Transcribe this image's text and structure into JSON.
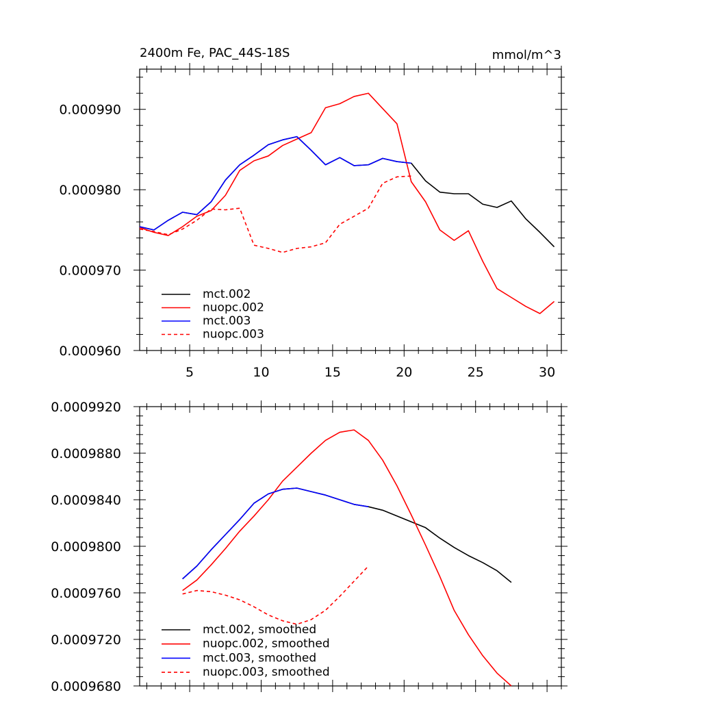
{
  "chart_data": [
    {
      "type": "line",
      "title": "2400m Fe, PAC_44S-18S",
      "units": "mmol/m^3",
      "xlabel": "",
      "ylabel": "",
      "xlim": [
        1.5,
        31
      ],
      "ylim": [
        0.00096,
        0.000995
      ],
      "x_ticks": [
        5,
        10,
        15,
        20,
        25,
        30
      ],
      "y_ticks": [
        0.00096,
        0.00097,
        0.00098,
        0.00099
      ],
      "y_tick_labels": [
        "0.000960",
        "0.000970",
        "0.000980",
        "0.000990"
      ],
      "legend_position": "bottom-left",
      "series": [
        {
          "name": "mct.002",
          "color": "#000000",
          "dash": "solid",
          "x": [
            1.5,
            2.5,
            3.5,
            4.5,
            5.5,
            6.5,
            7.5,
            8.5,
            9.5,
            10.5,
            11.5,
            12.5,
            13.5,
            14.5,
            15.5,
            16.5,
            17.5,
            18.5,
            19.5,
            20.5,
            21.5,
            22.5,
            23.5,
            24.5,
            25.5,
            26.5,
            27.5,
            28.5,
            29.5,
            30.5
          ],
          "values": [
            0.0009754,
            0.000975,
            0.0009762,
            0.0009772,
            0.0009769,
            0.0009785,
            0.0009812,
            0.0009831,
            0.0009843,
            0.0009856,
            0.0009862,
            0.0009866,
            0.0009849,
            0.0009831,
            0.000984,
            0.000983,
            0.0009831,
            0.0009839,
            0.0009835,
            0.0009833,
            0.0009811,
            0.0009797,
            0.0009795,
            0.0009795,
            0.0009782,
            0.0009778,
            0.0009786,
            0.0009764,
            0.0009747,
            0.0009729
          ]
        },
        {
          "name": "nuopc.002",
          "color": "#ff0000",
          "dash": "solid",
          "x": [
            1.5,
            2.5,
            3.5,
            4.5,
            5.5,
            6.5,
            7.5,
            8.5,
            9.5,
            10.5,
            11.5,
            12.5,
            13.5,
            14.5,
            15.5,
            16.5,
            17.5,
            18.5,
            19.5,
            20.5,
            21.5,
            22.5,
            23.5,
            24.5,
            25.5,
            26.5,
            27.5,
            28.5,
            29.5,
            30.5
          ],
          "values": [
            0.0009753,
            0.0009747,
            0.0009743,
            0.0009754,
            0.0009767,
            0.0009774,
            0.0009793,
            0.0009824,
            0.0009836,
            0.0009842,
            0.0009855,
            0.0009863,
            0.0009871,
            0.0009902,
            0.0009907,
            0.0009916,
            0.000992,
            0.0009901,
            0.0009882,
            0.000981,
            0.0009785,
            0.000975,
            0.0009737,
            0.0009749,
            0.0009711,
            0.0009677,
            0.0009666,
            0.0009655,
            0.0009646,
            0.0009661
          ]
        },
        {
          "name": "mct.003",
          "color": "#0000ff",
          "dash": "solid",
          "x": [
            1.5,
            2.5,
            3.5,
            4.5,
            5.5,
            6.5,
            7.5,
            8.5,
            9.5,
            10.5,
            11.5,
            12.5,
            13.5,
            14.5,
            15.5,
            16.5,
            17.5,
            18.5,
            19.5,
            20.5
          ],
          "values": [
            0.0009754,
            0.000975,
            0.0009762,
            0.0009772,
            0.0009769,
            0.0009785,
            0.0009812,
            0.0009831,
            0.0009843,
            0.0009856,
            0.0009862,
            0.0009866,
            0.0009849,
            0.0009831,
            0.000984,
            0.000983,
            0.0009831,
            0.0009839,
            0.0009835,
            0.0009833
          ]
        },
        {
          "name": "nuopc.003",
          "color": "#ff0000",
          "dash": "dashed",
          "x": [
            1.5,
            2.5,
            3.5,
            4.5,
            5.5,
            6.5,
            7.5,
            8.5,
            9.5,
            10.5,
            11.5,
            12.5,
            13.5,
            14.5,
            15.5,
            16.5,
            17.5,
            18.5,
            19.5,
            20.5
          ],
          "values": [
            0.0009751,
            0.0009748,
            0.0009744,
            0.0009751,
            0.0009762,
            0.0009776,
            0.0009775,
            0.0009777,
            0.0009731,
            0.0009727,
            0.0009722,
            0.0009727,
            0.0009729,
            0.0009734,
            0.0009757,
            0.0009767,
            0.0009777,
            0.0009808,
            0.0009816,
            0.0009817
          ]
        }
      ]
    },
    {
      "type": "line",
      "title": "",
      "xlabel": "",
      "ylabel": "",
      "xlim": [
        1.5,
        31
      ],
      "ylim": [
        0.000968,
        0.000992
      ],
      "x_ticks": [
        5,
        10,
        15,
        20,
        25,
        30
      ],
      "y_ticks": [
        0.000968,
        0.000972,
        0.000976,
        0.00098,
        0.000984,
        0.000988,
        0.000992
      ],
      "y_tick_labels": [
        "0.0009680",
        "0.0009720",
        "0.0009760",
        "0.0009800",
        "0.0009840",
        "0.0009880",
        "0.0009920"
      ],
      "legend_position": "bottom-left",
      "series": [
        {
          "name": "mct.002, smoothed",
          "color": "#000000",
          "dash": "solid",
          "x": [
            4.5,
            5.5,
            6.5,
            7.5,
            8.5,
            9.5,
            10.5,
            11.5,
            12.5,
            13.5,
            14.5,
            15.5,
            16.5,
            17.5,
            18.5,
            19.5,
            20.5,
            21.5,
            22.5,
            23.5,
            24.5,
            25.5,
            26.5,
            27.5
          ],
          "values": [
            0.0009772,
            0.0009783,
            0.0009797,
            0.000981,
            0.0009823,
            0.0009837,
            0.0009845,
            0.0009849,
            0.000985,
            0.0009847,
            0.0009844,
            0.000984,
            0.0009836,
            0.0009834,
            0.0009831,
            0.0009826,
            0.0009821,
            0.0009816,
            0.0009807,
            0.0009799,
            0.0009792,
            0.0009786,
            0.0009779,
            0.0009769
          ]
        },
        {
          "name": "nuopc.002, smoothed",
          "color": "#ff0000",
          "dash": "solid",
          "x": [
            4.5,
            5.5,
            6.5,
            7.5,
            8.5,
            9.5,
            10.5,
            11.5,
            12.5,
            13.5,
            14.5,
            15.5,
            16.5,
            17.5,
            18.5,
            19.5,
            20.5,
            21.5,
            22.5,
            23.5,
            24.5,
            25.5,
            26.5,
            27.5
          ],
          "values": [
            0.0009762,
            0.0009771,
            0.0009784,
            0.0009798,
            0.0009813,
            0.0009826,
            0.000984,
            0.0009856,
            0.0009868,
            0.000988,
            0.0009891,
            0.0009898,
            0.00099,
            0.0009891,
            0.0009874,
            0.0009852,
            0.0009827,
            0.0009801,
            0.0009774,
            0.0009745,
            0.0009724,
            0.0009706,
            0.0009691,
            0.000968
          ]
        },
        {
          "name": "mct.003, smoothed",
          "color": "#0000ff",
          "dash": "solid",
          "x": [
            4.5,
            5.5,
            6.5,
            7.5,
            8.5,
            9.5,
            10.5,
            11.5,
            12.5,
            13.5,
            14.5,
            15.5,
            16.5,
            17.5
          ],
          "values": [
            0.0009772,
            0.0009783,
            0.0009797,
            0.000981,
            0.0009823,
            0.0009837,
            0.0009845,
            0.0009849,
            0.000985,
            0.0009847,
            0.0009844,
            0.000984,
            0.0009836,
            0.0009834
          ]
        },
        {
          "name": "nuopc.003, smoothed",
          "color": "#ff0000",
          "dash": "dashed",
          "x": [
            4.5,
            5.5,
            6.5,
            7.5,
            8.5,
            9.5,
            10.5,
            11.5,
            12.5,
            13.5,
            14.5,
            15.5,
            16.5,
            17.5
          ],
          "values": [
            0.0009759,
            0.0009762,
            0.0009761,
            0.0009758,
            0.0009754,
            0.0009748,
            0.0009741,
            0.0009736,
            0.0009733,
            0.0009737,
            0.0009745,
            0.0009757,
            0.000977,
            0.0009783
          ]
        }
      ]
    }
  ]
}
